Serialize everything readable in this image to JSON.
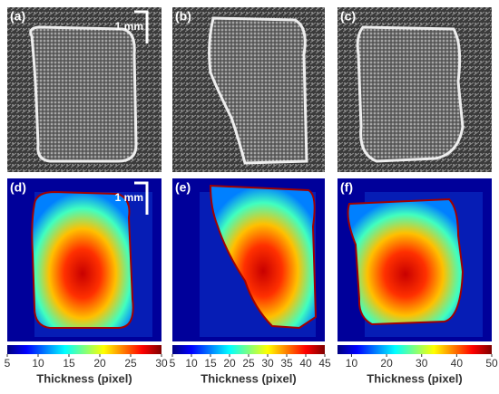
{
  "panels": [
    {
      "label": "(a)",
      "scale_bar": "1 mm"
    },
    {
      "label": "(b)"
    },
    {
      "label": "(c)"
    },
    {
      "label": "(d)",
      "scale_bar": "1 mm"
    },
    {
      "label": "(e)"
    },
    {
      "label": "(f)"
    }
  ],
  "colorbars": [
    {
      "xlim": [
        5,
        30
      ],
      "xticks": [
        5,
        10,
        15,
        20,
        25,
        30
      ],
      "label": "Thickness (pixel)"
    },
    {
      "xlim": [
        5,
        45
      ],
      "xticks": [
        5,
        10,
        15,
        20,
        25,
        30,
        35,
        40,
        45
      ],
      "label": "Thickness (pixel)"
    },
    {
      "xlim": [
        6,
        50
      ],
      "xticks": [
        10,
        20,
        30,
        40,
        50
      ],
      "label": "Thickness (pixel)"
    }
  ]
}
